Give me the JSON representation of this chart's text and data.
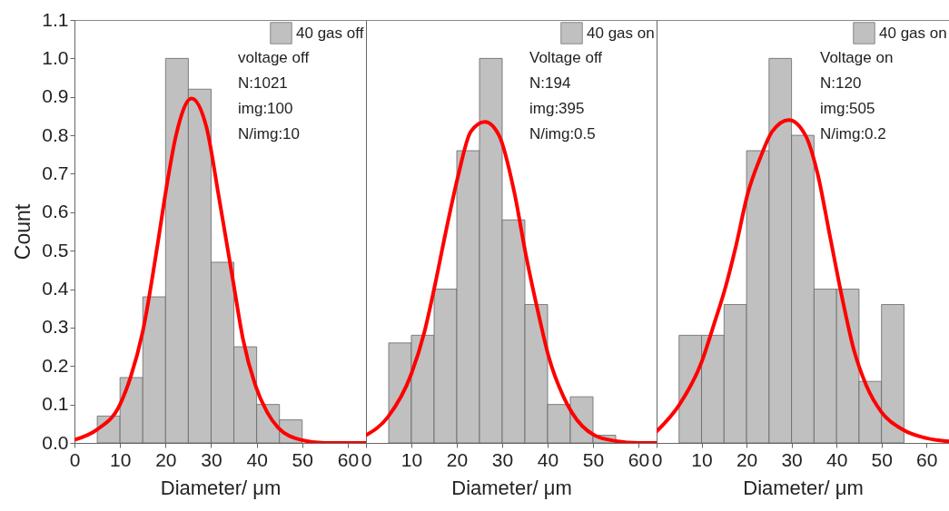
{
  "chart_data": [
    {
      "type": "histogram",
      "xlabel": "Diameter/ μm",
      "ylabel": "Count",
      "legend": "top right",
      "bins": [
        5,
        10,
        15,
        20,
        25,
        30,
        35,
        40,
        45,
        50
      ],
      "series": [
        {
          "name": "40 gas off",
          "color": "#c0c0c0",
          "values": [
            0.07,
            0.17,
            0.38,
            1.0,
            0.92,
            0.47,
            0.25,
            0.1,
            0.06
          ]
        },
        {
          "type": "line",
          "color": "#ff0000",
          "x": [
            0,
            5,
            10,
            12.3,
            15,
            18.3,
            20,
            22.3,
            25.7,
            29,
            31.7,
            34.7,
            37,
            39.7,
            42.3,
            44.7,
            49.7,
            55,
            60,
            64
          ],
          "values": [
            0.008,
            0.035,
            0.1,
            0.17,
            0.29,
            0.52,
            0.65,
            0.8,
            0.896,
            0.82,
            0.64,
            0.43,
            0.27,
            0.15,
            0.08,
            0.04,
            0.008,
            0,
            0,
            0
          ]
        }
      ],
      "annotations": [
        "voltage off",
        "N:1021",
        "img:100",
        "N/img:10"
      ],
      "xlim": [
        0,
        64
      ],
      "xticks": [
        0,
        10,
        20,
        30,
        40,
        50,
        60
      ],
      "ylim": [
        0,
        1.1
      ],
      "yticks": [
        {
          "value": 0,
          "label": "0.0"
        },
        0.1,
        0.2,
        0.3,
        0.4,
        0.5,
        0.6,
        0.7,
        0.8,
        0.9,
        {
          "value": 1,
          "label": "1.0"
        },
        1.1
      ]
    },
    {
      "type": "histogram",
      "xlabel": "Diameter/ μm",
      "legend": "top right",
      "tick_labels": "x",
      "bins": [
        5,
        10,
        15,
        20,
        25,
        30,
        35,
        40,
        45,
        50,
        55
      ],
      "series": [
        {
          "name": "40 gas on",
          "color": "#c0c0c0",
          "values": [
            0.26,
            0.28,
            0.4,
            0.76,
            1.0,
            0.58,
            0.36,
            0.1,
            0.12,
            0.02
          ]
        },
        {
          "type": "line",
          "color": "#ff0000",
          "x": [
            0,
            4.8,
            10,
            12.9,
            15,
            17.6,
            20.2,
            23.1,
            26.2,
            29.3,
            32.7,
            35.2,
            38.1,
            40.1,
            43.5,
            45.3,
            50.3,
            55,
            60,
            64
          ],
          "values": [
            0.02,
            0.067,
            0.18,
            0.29,
            0.4,
            0.55,
            0.69,
            0.81,
            0.835,
            0.8,
            0.65,
            0.49,
            0.33,
            0.23,
            0.12,
            0.08,
            0.02,
            0.005,
            0,
            0
          ]
        }
      ],
      "annotations": [
        "Voltage off",
        "N:194",
        "img:395",
        "N/img:0.5"
      ],
      "xlim": [
        0,
        64
      ],
      "xticks": [
        0,
        10,
        20,
        30,
        40,
        50,
        60
      ],
      "ylim": [
        0,
        1.1
      ]
    },
    {
      "type": "histogram",
      "xlabel": "Diameter/ μm",
      "legend": "top right",
      "tick_labels": "x",
      "bins": [
        5,
        10,
        15,
        20,
        25,
        30,
        35,
        40,
        45,
        50,
        55
      ],
      "series": [
        {
          "name": "40 gas on",
          "color": "#c0c0c0",
          "values": [
            0.28,
            0.28,
            0.36,
            0.76,
            1.0,
            0.8,
            0.4,
            0.4,
            0.16,
            0.36
          ]
        },
        {
          "type": "line",
          "color": "#ff0000",
          "x": [
            0,
            5.1,
            10,
            12.8,
            15.2,
            17.6,
            20.3,
            23,
            25.7,
            29.4,
            33.1,
            35.8,
            38.5,
            41.2,
            43.9,
            46.6,
            50,
            54.7,
            60.1,
            64.9
          ],
          "values": [
            0.03,
            0.1,
            0.21,
            0.31,
            0.4,
            0.51,
            0.65,
            0.74,
            0.81,
            0.84,
            0.8,
            0.7,
            0.54,
            0.38,
            0.24,
            0.15,
            0.08,
            0.035,
            0.012,
            0.004
          ]
        }
      ],
      "annotations": [
        "Voltage on",
        "N:120",
        "img:505",
        "N/img:0.2"
      ],
      "xlim": [
        0,
        65
      ],
      "xticks": [
        0,
        10,
        20,
        30,
        40,
        50,
        60
      ],
      "ylim": [
        0,
        1.1
      ]
    }
  ]
}
